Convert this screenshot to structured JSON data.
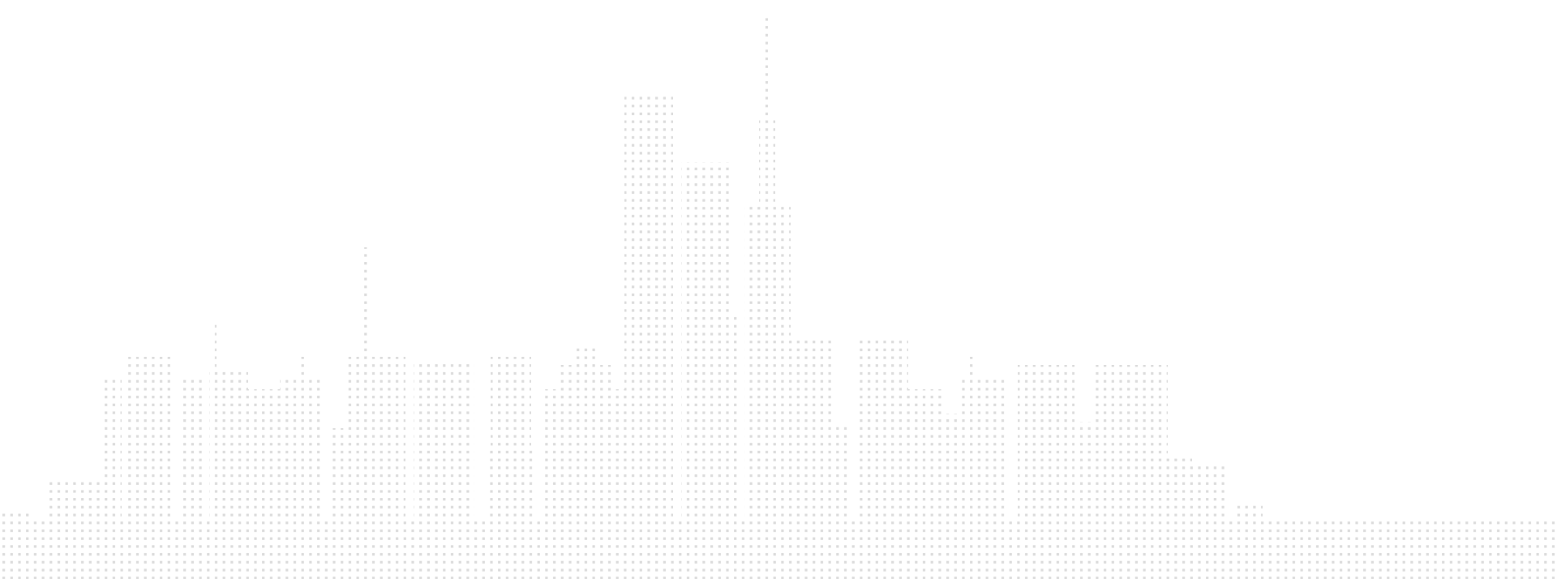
{
  "colors": {
    "dot": "#dcdcdc",
    "background": "#ffffff"
  }
}
